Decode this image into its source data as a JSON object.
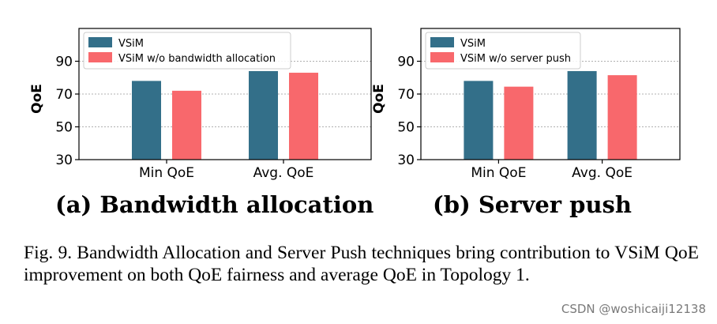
{
  "chart_data": [
    {
      "type": "bar",
      "categories": [
        "Min QoE",
        "Avg. QoE"
      ],
      "series": [
        {
          "name": "VSiM",
          "values": [
            78,
            84
          ],
          "color": "#336f89"
        },
        {
          "name": "VSiM w/o bandwidth allocation",
          "values": [
            72,
            83
          ],
          "color": "#f8686c"
        }
      ],
      "ylabel": "QoE",
      "ylim": [
        30,
        110
      ],
      "yticks": [
        30,
        50,
        70,
        90
      ],
      "grid": "horizontal dotted",
      "legend": "top-left",
      "subcaption": "(a) Bandwidth allocation"
    },
    {
      "type": "bar",
      "categories": [
        "Min QoE",
        "Avg. QoE"
      ],
      "series": [
        {
          "name": "VSiM",
          "values": [
            78,
            84
          ],
          "color": "#336f89"
        },
        {
          "name": "VSiM w/o server push",
          "values": [
            74.5,
            81.5
          ],
          "color": "#f8686c"
        }
      ],
      "ylabel": "QoE",
      "ylim": [
        30,
        110
      ],
      "yticks": [
        30,
        50,
        70,
        90
      ],
      "grid": "horizontal dotted",
      "legend": "top-left",
      "subcaption": "(b) Server push"
    }
  ],
  "caption": "Fig. 9.   Bandwidth Allocation and Server Push techniques bring contribution to VSiM QoE improvement on both QoE fairness and average QoE in Topology 1.",
  "watermark": "CSDN @woshicaiji12138"
}
